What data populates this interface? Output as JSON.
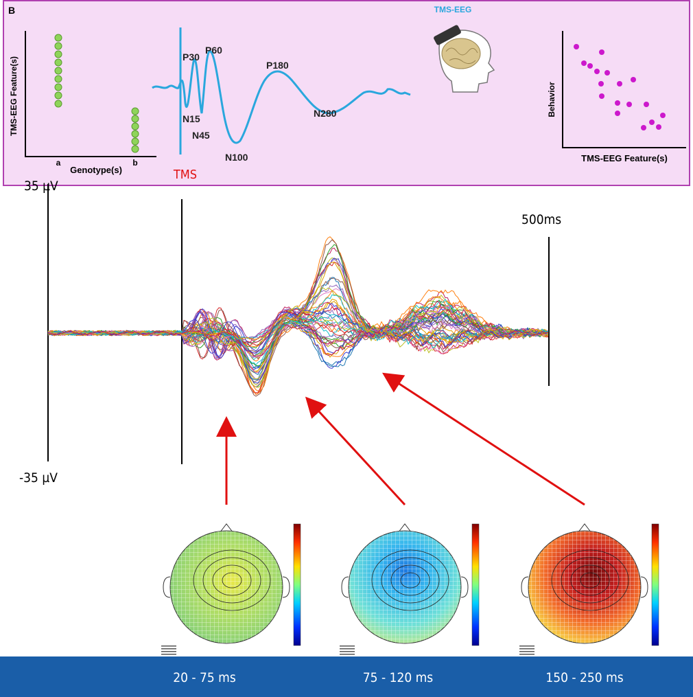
{
  "panel_label": "B",
  "genotype_plot": {
    "y_label": "TMS-EEG Feature(s)",
    "x_label": "Genotype(s)",
    "groups": [
      "a",
      "b"
    ]
  },
  "waveform": {
    "peaks": [
      "P30",
      "P60",
      "N15",
      "N45",
      "N100",
      "P180",
      "N280"
    ],
    "marker": "TMS"
  },
  "device_label": "TMS-EEG",
  "behavior_plot": {
    "y_label": "Behavior",
    "x_label": "TMS-EEG Feature(s)"
  },
  "eeg": {
    "top_scale": "35 µV",
    "bottom_scale": "-35 µV",
    "time_scale": "500ms"
  },
  "windows": [
    "20 - 75 ms",
    "75 - 120 ms",
    "150 - 250 ms"
  ]
}
